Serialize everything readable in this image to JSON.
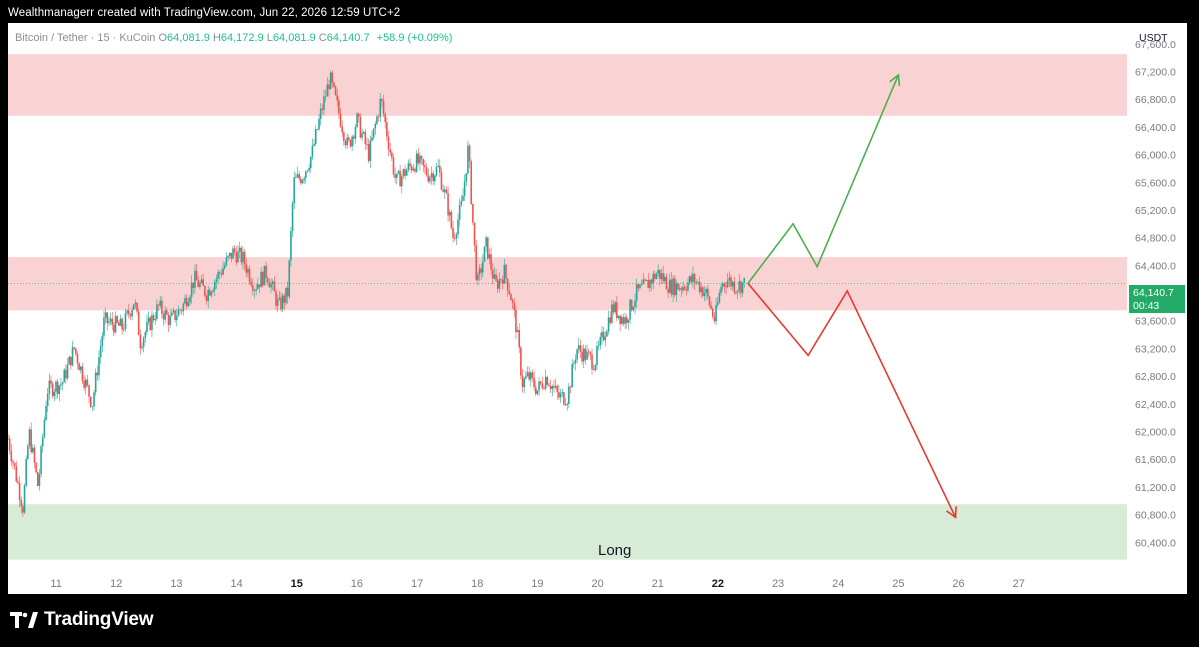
{
  "caption": "Wealthmanagerr created with TradingView.com, Jun 22, 2026 12:59 UTC+2",
  "legend": {
    "symbol": "Bitcoin / Tether · 15 · KuCoin",
    "o_label": "O",
    "o_value": "64,081.9",
    "h_label": "H",
    "h_value": "64,172.9",
    "l_label": "L",
    "l_value": "64,081.9",
    "c_label": "C",
    "c_value": "64,140.7",
    "change": "+58.9 (+0.09%)"
  },
  "currency": "USDT",
  "price_tag": {
    "price": "64,140.7",
    "countdown": "00:43"
  },
  "zone_label": "Long",
  "brand": {
    "name": "TradingView",
    "logo_icon": "tradingview-logo-icon"
  },
  "colors": {
    "up": "#26a69a",
    "down": "#ef5350",
    "resistance_zone": "#f9d3d3",
    "support_zone": "#d7ecd7",
    "bull_path": "#4caf50",
    "bear_path": "#e53935",
    "price_tag": "#22ab66"
  },
  "chart_data": {
    "type": "candlestick",
    "symbol": "Bitcoin / Tether",
    "interval": "15",
    "exchange": "KuCoin",
    "y_axis_ticks": [
      60400,
      60800,
      61200,
      61600,
      62000,
      62400,
      62800,
      63200,
      63600,
      64000,
      64400,
      64800,
      65200,
      65600,
      66000,
      66400,
      66800,
      67200,
      67600
    ],
    "y_tick_labels": [
      "60,400.0",
      "60,800.0",
      "61,200.0",
      "61,600.0",
      "62,000.0",
      "62,400.0",
      "62,800.0",
      "63,200.0",
      "63,600.0",
      "64,000.0",
      "64,400.0",
      "64,800.0",
      "65,200.0",
      "65,600.0",
      "66,000.0",
      "66,400.0",
      "66,800.0",
      "67,200.0",
      "67,600.0"
    ],
    "ylim": [
      60000,
      67900
    ],
    "x_tick_labels": [
      "11",
      "12",
      "13",
      "14",
      "15",
      "16",
      "17",
      "18",
      "19",
      "20",
      "21",
      "22",
      "23",
      "24",
      "25",
      "26",
      "27"
    ],
    "x_bold_labels": [
      "15",
      "22"
    ],
    "xlim": [
      10.2,
      28.8
    ],
    "last_price": 64140.7,
    "price_path": [
      [
        10.2,
        61900
      ],
      [
        10.35,
        61300
      ],
      [
        10.45,
        60900
      ],
      [
        10.55,
        62000
      ],
      [
        10.7,
        61200
      ],
      [
        10.85,
        62600
      ],
      [
        11.1,
        62700
      ],
      [
        11.3,
        63200
      ],
      [
        11.6,
        62400
      ],
      [
        11.8,
        63600
      ],
      [
        12.1,
        63500
      ],
      [
        12.3,
        63900
      ],
      [
        12.4,
        63300
      ],
      [
        12.7,
        63800
      ],
      [
        12.9,
        63600
      ],
      [
        13.1,
        63800
      ],
      [
        13.3,
        64200
      ],
      [
        13.5,
        64000
      ],
      [
        13.8,
        64400
      ],
      [
        13.95,
        64600
      ],
      [
        14.1,
        64500
      ],
      [
        14.3,
        64100
      ],
      [
        14.5,
        64300
      ],
      [
        14.7,
        63800
      ],
      [
        14.85,
        64000
      ],
      [
        14.95,
        65600
      ],
      [
        15.1,
        65700
      ],
      [
        15.25,
        66000
      ],
      [
        15.4,
        66600
      ],
      [
        15.55,
        67100
      ],
      [
        15.7,
        66600
      ],
      [
        15.85,
        66100
      ],
      [
        16.0,
        66500
      ],
      [
        16.2,
        66000
      ],
      [
        16.4,
        66800
      ],
      [
        16.5,
        66300
      ],
      [
        16.65,
        65600
      ],
      [
        16.85,
        65800
      ],
      [
        17.0,
        65900
      ],
      [
        17.2,
        65700
      ],
      [
        17.35,
        65800
      ],
      [
        17.5,
        65300
      ],
      [
        17.6,
        64800
      ],
      [
        17.75,
        65300
      ],
      [
        17.85,
        66100
      ],
      [
        17.95,
        64700
      ],
      [
        18.0,
        64100
      ],
      [
        18.15,
        64700
      ],
      [
        18.3,
        64100
      ],
      [
        18.45,
        64300
      ],
      [
        18.55,
        64000
      ],
      [
        18.65,
        63500
      ],
      [
        18.75,
        62700
      ],
      [
        18.85,
        62800
      ],
      [
        19.0,
        62600
      ],
      [
        19.15,
        62800
      ],
      [
        19.35,
        62500
      ],
      [
        19.5,
        62500
      ],
      [
        19.65,
        63200
      ],
      [
        19.8,
        63100
      ],
      [
        19.95,
        63000
      ],
      [
        20.1,
        63400
      ],
      [
        20.25,
        63800
      ],
      [
        20.45,
        63600
      ],
      [
        20.65,
        64000
      ],
      [
        20.8,
        64100
      ],
      [
        21.0,
        64300
      ],
      [
        21.2,
        64100
      ],
      [
        21.4,
        64100
      ],
      [
        21.6,
        64200
      ],
      [
        21.8,
        64000
      ],
      [
        21.95,
        63600
      ],
      [
        22.05,
        64100
      ],
      [
        22.15,
        64200
      ],
      [
        22.3,
        64100
      ],
      [
        22.45,
        64140
      ]
    ],
    "zones": [
      {
        "name": "resistance-top",
        "low": 66560,
        "high": 67450
      },
      {
        "name": "resistance-mid",
        "low": 63750,
        "high": 64520
      },
      {
        "name": "support-long",
        "label": "Long",
        "low": 60150,
        "high": 60950
      }
    ],
    "projections": {
      "bullish": [
        [
          22.5,
          64140
        ],
        [
          23.25,
          65000
        ],
        [
          23.65,
          64380
        ],
        [
          25.0,
          67150
        ]
      ],
      "bearish": [
        [
          22.5,
          64140
        ],
        [
          23.5,
          63100
        ],
        [
          24.15,
          64030
        ],
        [
          25.95,
          60760
        ]
      ]
    }
  }
}
